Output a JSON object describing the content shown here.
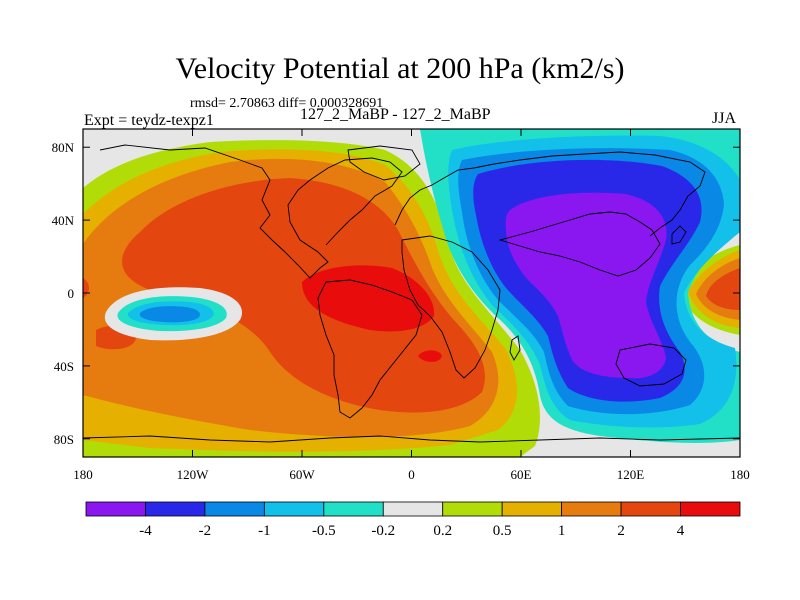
{
  "title": "Velocity Potential at 200 hPa (km2/s)",
  "stats_line": "rmsd= 2.70863 diff= 0.000328691",
  "left_string": "Expt = teydz-texpz1",
  "center_string": "127_2_MaBP - 127_2_MaBP",
  "right_string": "JJA",
  "chart_data": {
    "type": "heatmap",
    "title": "Velocity Potential at 200 hPa (km2/s)",
    "subtitle": "127_2_MaBP - 127_2_MaBP",
    "projection": "cylindrical-equidistant",
    "xlim": [
      -180,
      180
    ],
    "ylim": [
      -90,
      90
    ],
    "x_ticks": [
      {
        "value": -180,
        "label": "180"
      },
      {
        "value": -120,
        "label": "120W"
      },
      {
        "value": -60,
        "label": "60W"
      },
      {
        "value": 0,
        "label": "0"
      },
      {
        "value": 60,
        "label": "60E"
      },
      {
        "value": 120,
        "label": "120E"
      },
      {
        "value": 180,
        "label": "180"
      }
    ],
    "y_ticks": [
      {
        "value": 80,
        "label": "80N"
      },
      {
        "value": 40,
        "label": "40N"
      },
      {
        "value": 0,
        "label": "0"
      },
      {
        "value": -40,
        "label": "40S"
      },
      {
        "value": -80,
        "label": "80S"
      }
    ],
    "colorbar": {
      "levels": [
        "-4",
        "-2",
        "-1",
        "-0.5",
        "-0.2",
        "0.2",
        "0.5",
        "1",
        "2",
        "4"
      ],
      "colors": [
        "#8a16f0",
        "#2a28e8",
        "#0a88e6",
        "#12c0ea",
        "#22e0c8",
        "#e6e6e6",
        "#b2dc08",
        "#e6b000",
        "#e67c10",
        "#e44610",
        "#e80c0c"
      ]
    },
    "features": [
      {
        "name": "Positive maximum (> 4)",
        "lon": -30,
        "lat": 5
      },
      {
        "name": "Negative minimum (< -4)",
        "lon": 100,
        "lat": 20
      },
      {
        "name": "Negative pocket (-1 to -2)",
        "lon": -137,
        "lat": -5
      },
      {
        "name": "Positive pocket (2 to 4)",
        "lon": 165,
        "lat": 3
      }
    ]
  }
}
